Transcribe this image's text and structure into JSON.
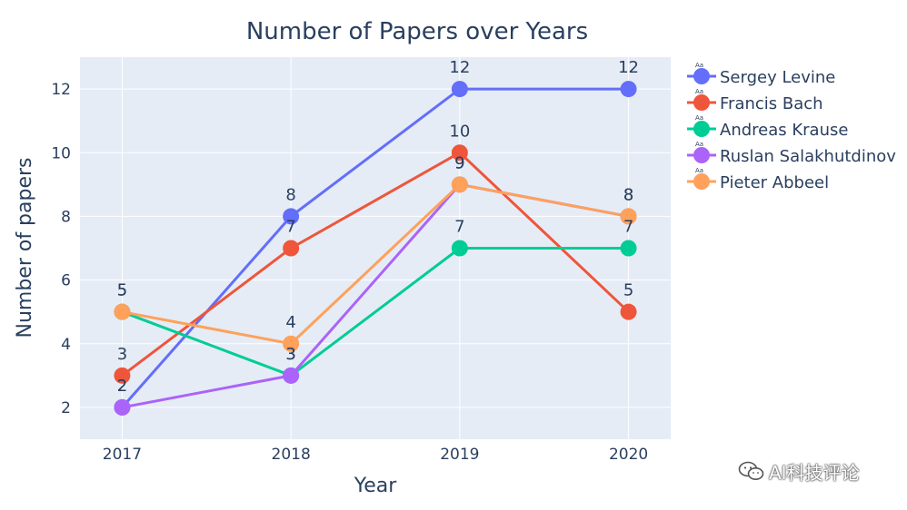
{
  "chart_data": {
    "type": "line",
    "title": "Number of Papers over Years",
    "xlabel": "Year",
    "ylabel": "Number of papers",
    "x": [
      2017,
      2018,
      2019,
      2020
    ],
    "xticks": [
      "2017",
      "2018",
      "2019",
      "2020"
    ],
    "xlim": [
      2016.75,
      2020.25
    ],
    "ylim": [
      1,
      13
    ],
    "yticks": [
      2,
      4,
      6,
      8,
      10,
      12
    ],
    "grid": true,
    "legend_position": "right",
    "legend_marker_text": "Aa",
    "series": [
      {
        "name": "Sergey Levine",
        "color": "#636efa",
        "values": [
          2,
          8,
          12,
          12
        ]
      },
      {
        "name": "Francis Bach",
        "color": "#ef553b",
        "values": [
          3,
          7,
          10,
          5
        ]
      },
      {
        "name": "Andreas Krause",
        "color": "#00cc96",
        "values": [
          5,
          3,
          7,
          7
        ]
      },
      {
        "name": "Ruslan Salakhutdinov",
        "color": "#ab63fa",
        "values": [
          2,
          3,
          9,
          8
        ]
      },
      {
        "name": "Pieter Abbeel",
        "color": "#ffa15a",
        "values": [
          5,
          4,
          9,
          8
        ]
      }
    ]
  },
  "watermark": {
    "text": "AI科技评论",
    "icon": "wechat-icon"
  }
}
